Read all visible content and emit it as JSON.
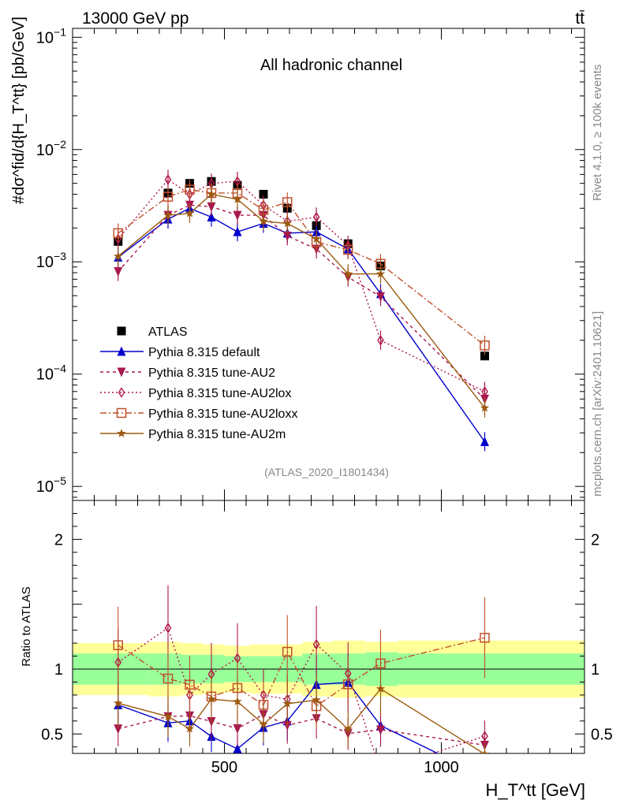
{
  "header": {
    "energy": "13000 GeV pp",
    "process": "tt̄",
    "side_rivet": "Rivet 4.1.0, ≥ 100k events",
    "side_mcplots": "mcplots.cern.ch [arXiv:2401.10621]"
  },
  "chart_data": {
    "type": "line",
    "title": "All hadronic channel",
    "analysis_id": "(ATLAS_2020_I1801434)",
    "xlabel": "H_T^tt [GeV]",
    "ylabel_top": "#dσ^fid/d{H_T^tt} [pb/GeV]",
    "ylabel_ratio": "Ratio to ATLAS",
    "xlim": [
      150,
      1330
    ],
    "ylim": [
      7.5e-06,
      0.12
    ],
    "ylim_ratio": [
      0.35,
      2.3
    ],
    "x_ticks": [
      500,
      1000
    ],
    "y_ticks_main": [
      "10^-5",
      "10^-4",
      "10^-3",
      "10^-2",
      "10^-1"
    ],
    "y_ticks_ratio": [
      0.5,
      1,
      2
    ],
    "bin_edges": [
      150,
      325,
      400,
      450,
      500,
      560,
      620,
      680,
      750,
      825,
      900,
      1330
    ],
    "band_inner": [
      0.12,
      0.12,
      0.11,
      0.11,
      0.1,
      0.1,
      0.1,
      0.12,
      0.12,
      0.13,
      0.12
    ],
    "band_outer": [
      0.2,
      0.21,
      0.2,
      0.19,
      0.18,
      0.19,
      0.19,
      0.21,
      0.22,
      0.21,
      0.22
    ],
    "series": [
      {
        "name": "ATLAS",
        "marker": "square-filled",
        "color": "#000000",
        "dash": "",
        "x": [
          255,
          370,
          420,
          470,
          530,
          590,
          645,
          712,
          785,
          860,
          1100
        ],
        "y": [
          0.00152,
          0.0041,
          0.005,
          0.0052,
          0.0048,
          0.004,
          0.003,
          0.0021,
          0.00145,
          0.00092,
          0.000145
        ]
      },
      {
        "name": "Pythia 8.315 default",
        "marker": "triangle-up",
        "color": "#0000cc",
        "dash": "",
        "x": [
          255,
          370,
          420,
          470,
          530,
          590,
          645,
          712,
          785,
          860,
          1100
        ],
        "y": [
          0.0011,
          0.0024,
          0.003,
          0.0025,
          0.00185,
          0.0022,
          0.0018,
          0.00185,
          0.0013,
          0.00052,
          2.5e-05
        ]
      },
      {
        "name": "Pythia 8.315 tune-AU2",
        "marker": "triangle-down",
        "color": "#a8184e",
        "dash": "4,4",
        "x": [
          255,
          370,
          420,
          470,
          530,
          590,
          645,
          712,
          785,
          860,
          1100
        ],
        "y": [
          0.00082,
          0.0026,
          0.0032,
          0.0031,
          0.0026,
          0.0026,
          0.0017,
          0.0013,
          0.00073,
          0.00049,
          6e-05
        ]
      },
      {
        "name": "Pythia 8.315 tune-AU2lox",
        "marker": "diamond-open",
        "color": "#b01848",
        "dash": "2,3",
        "x": [
          255,
          370,
          420,
          470,
          530,
          590,
          645,
          712,
          785,
          860,
          1100
        ],
        "y": [
          0.0016,
          0.0054,
          0.004,
          0.005,
          0.0052,
          0.0032,
          0.0023,
          0.0025,
          0.0014,
          0.0002,
          7e-05
        ]
      },
      {
        "name": "Pythia 8.315 tune-AU2loxx",
        "marker": "square-open",
        "color": "#c0502c",
        "dash": "8,3,2,3",
        "x": [
          255,
          370,
          420,
          470,
          530,
          590,
          645,
          712,
          785,
          860,
          1100
        ],
        "y": [
          0.0018,
          0.0038,
          0.0044,
          0.0041,
          0.0041,
          0.0029,
          0.0034,
          0.0015,
          0.00128,
          0.00096,
          0.00018
        ]
      },
      {
        "name": "Pythia 8.315 tune-AU2m",
        "marker": "star",
        "color": "#9c5a10",
        "dash": "",
        "x": [
          255,
          370,
          420,
          470,
          530,
          590,
          645,
          712,
          785,
          860,
          1100
        ],
        "y": [
          0.00112,
          0.0026,
          0.0027,
          0.004,
          0.0036,
          0.0023,
          0.0022,
          0.0016,
          0.00078,
          0.00078,
          5e-05
        ]
      }
    ]
  }
}
